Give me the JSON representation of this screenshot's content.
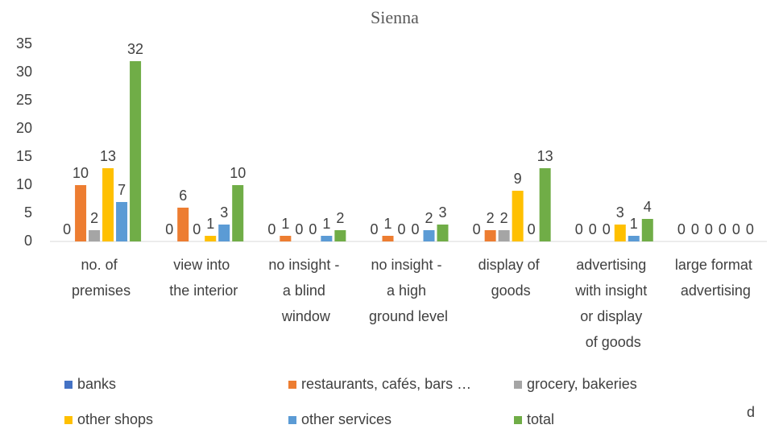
{
  "chart_data": {
    "type": "bar",
    "title": "Sienna",
    "categories": [
      "no. of premises",
      "view into the interior",
      "no insight - a blind window",
      "no insight - a high ground level",
      "display of goods",
      "advertising with insight or display of goods",
      "large format advertising"
    ],
    "series": [
      {
        "name": "banks",
        "color": "#4472c4",
        "values": [
          0,
          0,
          0,
          0,
          0,
          0,
          0
        ]
      },
      {
        "name": "restaurants, cafés, bars …",
        "color": "#ed7d31",
        "values": [
          10,
          6,
          1,
          1,
          2,
          0,
          0
        ]
      },
      {
        "name": "grocery, bakeries",
        "color": "#a5a5a5",
        "values": [
          2,
          0,
          0,
          0,
          2,
          0,
          0
        ]
      },
      {
        "name": "other shops",
        "color": "#ffc000",
        "values": [
          13,
          1,
          0,
          0,
          9,
          3,
          0
        ]
      },
      {
        "name": "other services",
        "color": "#5b9bd5",
        "values": [
          7,
          3,
          1,
          2,
          0,
          1,
          0
        ]
      },
      {
        "name": "total",
        "color": "#70ad47",
        "values": [
          32,
          10,
          2,
          3,
          13,
          4,
          0
        ]
      }
    ],
    "ylim": [
      0,
      35
    ],
    "yticks": [
      0,
      5,
      10,
      15,
      20,
      25,
      30,
      35
    ],
    "grid": false,
    "legend": "bottom",
    "annotations": [
      "d"
    ]
  }
}
